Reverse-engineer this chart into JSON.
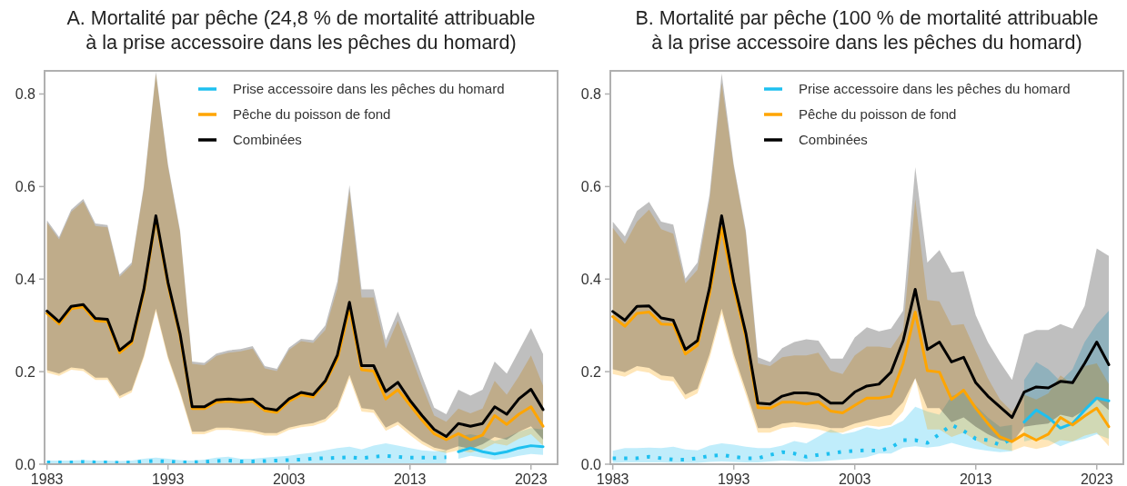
{
  "chart_data": [
    {
      "type": "line",
      "title": "A. Mortalité par pêche (24,8 % de mortalité attribuable\nà la prise accessoire dans les pêches du homard)",
      "xlim": [
        1982.8,
        2025.2
      ],
      "ylim": [
        0,
        0.85
      ],
      "xticks": [
        1983,
        1993,
        2003,
        2013,
        2023
      ],
      "yticks": [
        {
          "value": 0,
          "label": "0.0"
        },
        0.2,
        0.4,
        0.6,
        0.8
      ],
      "grid": false,
      "legend": "top right",
      "x": [
        1983,
        1984,
        1985,
        1986,
        1987,
        1988,
        1989,
        1990,
        1991,
        1992,
        1993,
        1994,
        1995,
        1996,
        1997,
        1998,
        1999,
        2000,
        2001,
        2002,
        2003,
        2004,
        2005,
        2006,
        2007,
        2008,
        2009,
        2010,
        2011,
        2012,
        2013,
        2014,
        2015,
        2016,
        2017,
        2018,
        2019,
        2020,
        2021,
        2022,
        2023,
        2024
      ],
      "series": [
        {
          "color": "#1ec0f0",
          "line_style": "dotted",
          "x": [
            1983,
            1984,
            1985,
            1986,
            1987,
            1988,
            1989,
            1990,
            1991,
            1992,
            1993,
            1994,
            1995,
            1996,
            1997,
            1998,
            1999,
            2000,
            2001,
            2002,
            2003,
            2004,
            2005,
            2006,
            2007,
            2008,
            2009,
            2010,
            2011,
            2012,
            2013,
            2014,
            2015,
            2016
          ],
          "values": [
            0.004,
            0.004,
            0.004,
            0.005,
            0.004,
            0.004,
            0.003,
            0.004,
            0.006,
            0.007,
            0.006,
            0.004,
            0.004,
            0.005,
            0.007,
            0.008,
            0.006,
            0.006,
            0.007,
            0.008,
            0.009,
            0.01,
            0.012,
            0.013,
            0.014,
            0.015,
            0.013,
            0.016,
            0.018,
            0.016,
            0.014,
            0.014,
            0.014,
            0.015
          ],
          "upper": [
            0.008,
            0.008,
            0.008,
            0.009,
            0.008,
            0.008,
            0.007,
            0.008,
            0.012,
            0.014,
            0.012,
            0.009,
            0.008,
            0.01,
            0.014,
            0.016,
            0.012,
            0.012,
            0.014,
            0.016,
            0.018,
            0.022,
            0.025,
            0.03,
            0.035,
            0.038,
            0.032,
            0.04,
            0.045,
            0.04,
            0.035,
            0.03,
            0.028,
            0.03
          ],
          "lower": [
            0.001,
            0.001,
            0.001,
            0.001,
            0.001,
            0.001,
            0.001,
            0.001,
            0.001,
            0.001,
            0.001,
            0.001,
            0.001,
            0.001,
            0.001,
            0.001,
            0.001,
            0.001,
            0.001,
            0.001,
            0.001,
            0.001,
            0.001,
            0.001,
            0.001,
            0.001,
            0.001,
            0.001,
            0.001,
            0.001,
            0.001,
            0.001,
            0.001,
            0.001
          ]
        },
        {
          "name": "Prise accessoire dans les pêches du homard",
          "color": "#1ec0f0",
          "line_style": "solid",
          "x": [
            2017,
            2018,
            2019,
            2020,
            2021,
            2022,
            2023,
            2024
          ],
          "values": [
            0.027,
            0.035,
            0.027,
            0.022,
            0.027,
            0.035,
            0.04,
            0.038
          ],
          "upper": [
            0.06,
            0.065,
            0.06,
            0.05,
            0.058,
            0.07,
            0.078,
            0.075
          ],
          "lower": [
            0.012,
            0.018,
            0.014,
            0.01,
            0.013,
            0.018,
            0.022,
            0.02
          ]
        },
        {
          "name": "Pêche du poisson de fond",
          "color": "#ffa500",
          "line_style": "solid",
          "values": [
            0.326,
            0.303,
            0.336,
            0.34,
            0.31,
            0.308,
            0.241,
            0.262,
            0.372,
            0.532,
            0.388,
            0.277,
            0.12,
            0.12,
            0.134,
            0.136,
            0.134,
            0.136,
            0.116,
            0.112,
            0.136,
            0.15,
            0.145,
            0.177,
            0.227,
            0.337,
            0.204,
            0.201,
            0.141,
            0.161,
            0.128,
            0.095,
            0.066,
            0.053,
            0.066,
            0.053,
            0.063,
            0.105,
            0.086,
            0.108,
            0.124,
            0.082
          ],
          "upper": [
            0.522,
            0.486,
            0.545,
            0.568,
            0.515,
            0.512,
            0.405,
            0.431,
            0.595,
            0.843,
            0.643,
            0.5,
            0.217,
            0.214,
            0.234,
            0.241,
            0.244,
            0.25,
            0.207,
            0.201,
            0.247,
            0.266,
            0.262,
            0.29,
            0.38,
            0.59,
            0.36,
            0.36,
            0.25,
            0.31,
            0.24,
            0.17,
            0.105,
            0.092,
            0.12,
            0.11,
            0.12,
            0.18,
            0.15,
            0.19,
            0.235,
            0.17
          ],
          "lower": [
            0.198,
            0.191,
            0.204,
            0.201,
            0.182,
            0.182,
            0.142,
            0.155,
            0.229,
            0.331,
            0.227,
            0.152,
            0.065,
            0.065,
            0.074,
            0.074,
            0.071,
            0.068,
            0.062,
            0.062,
            0.074,
            0.08,
            0.083,
            0.092,
            0.117,
            0.186,
            0.114,
            0.111,
            0.072,
            0.085,
            0.063,
            0.043,
            0.03,
            0.024,
            0.03,
            0.025,
            0.032,
            0.045,
            0.04,
            0.055,
            0.065,
            0.04
          ]
        },
        {
          "name": "Combinées",
          "color": "#000000",
          "line_style": "solid",
          "values": [
            0.331,
            0.308,
            0.341,
            0.345,
            0.315,
            0.313,
            0.246,
            0.267,
            0.377,
            0.537,
            0.393,
            0.282,
            0.124,
            0.124,
            0.139,
            0.141,
            0.139,
            0.141,
            0.121,
            0.117,
            0.141,
            0.155,
            0.15,
            0.18,
            0.236,
            0.35,
            0.213,
            0.213,
            0.157,
            0.177,
            0.138,
            0.105,
            0.075,
            0.06,
            0.088,
            0.082,
            0.088,
            0.124,
            0.108,
            0.141,
            0.162,
            0.118
          ],
          "upper": [
            0.527,
            0.491,
            0.55,
            0.573,
            0.52,
            0.517,
            0.41,
            0.436,
            0.6,
            0.848,
            0.648,
            0.505,
            0.222,
            0.219,
            0.239,
            0.246,
            0.249,
            0.255,
            0.212,
            0.206,
            0.252,
            0.271,
            0.268,
            0.3,
            0.395,
            0.603,
            0.378,
            0.378,
            0.268,
            0.33,
            0.262,
            0.19,
            0.122,
            0.108,
            0.161,
            0.148,
            0.161,
            0.222,
            0.196,
            0.245,
            0.294,
            0.238
          ],
          "lower": [
            0.203,
            0.196,
            0.209,
            0.206,
            0.187,
            0.187,
            0.147,
            0.16,
            0.234,
            0.336,
            0.232,
            0.157,
            0.07,
            0.07,
            0.079,
            0.079,
            0.076,
            0.073,
            0.067,
            0.067,
            0.079,
            0.085,
            0.089,
            0.098,
            0.124,
            0.193,
            0.121,
            0.118,
            0.079,
            0.092,
            0.07,
            0.05,
            0.036,
            0.03,
            0.039,
            0.033,
            0.043,
            0.059,
            0.053,
            0.07,
            0.082,
            0.053
          ]
        }
      ]
    },
    {
      "type": "line",
      "title": "B. Mortalité par pêche (100 % de mortalité attribuable\nà la prise accessoire dans les pêches du homard)",
      "xlim": [
        1982.8,
        2025.2
      ],
      "ylim": [
        0,
        0.85
      ],
      "xticks": [
        1983,
        1993,
        2003,
        2013,
        2023
      ],
      "yticks": [
        {
          "value": 0,
          "label": "0.0"
        },
        0.2,
        0.4,
        0.6,
        0.8
      ],
      "grid": false,
      "legend": "top right",
      "x": [
        1983,
        1984,
        1985,
        1986,
        1987,
        1988,
        1989,
        1990,
        1991,
        1992,
        1993,
        1994,
        1995,
        1996,
        1997,
        1998,
        1999,
        2000,
        2001,
        2002,
        2003,
        2004,
        2005,
        2006,
        2007,
        2008,
        2009,
        2010,
        2011,
        2012,
        2013,
        2014,
        2015,
        2016,
        2017,
        2018,
        2019,
        2020,
        2021,
        2022,
        2023,
        2024
      ],
      "series": [
        {
          "color": "#1ec0f0",
          "line_style": "dotted",
          "x": [
            1983,
            1984,
            1985,
            1986,
            1987,
            1988,
            1989,
            1990,
            1991,
            1992,
            1993,
            1994,
            1995,
            1996,
            1997,
            1998,
            1999,
            2000,
            2001,
            2002,
            2003,
            2004,
            2005,
            2006,
            2007,
            2008,
            2009,
            2010,
            2011,
            2012,
            2013,
            2014,
            2015,
            2016
          ],
          "values": [
            0.013,
            0.013,
            0.013,
            0.016,
            0.013,
            0.01,
            0.01,
            0.013,
            0.018,
            0.02,
            0.016,
            0.013,
            0.013,
            0.02,
            0.026,
            0.023,
            0.016,
            0.02,
            0.023,
            0.027,
            0.029,
            0.03,
            0.029,
            0.036,
            0.052,
            0.052,
            0.046,
            0.065,
            0.085,
            0.072,
            0.055,
            0.052,
            0.042,
            0.055
          ],
          "upper": [
            0.029,
            0.035,
            0.035,
            0.036,
            0.035,
            0.038,
            0.032,
            0.03,
            0.04,
            0.045,
            0.042,
            0.038,
            0.035,
            0.035,
            0.04,
            0.05,
            0.045,
            0.06,
            0.075,
            0.065,
            0.07,
            0.08,
            0.075,
            0.081,
            0.094,
            0.124,
            0.114,
            0.107,
            0.147,
            0.156,
            0.127,
            0.101,
            0.081,
            0.085
          ],
          "lower": [
            0.003,
            0.004,
            0.004,
            0.004,
            0.004,
            0.003,
            0.003,
            0.003,
            0.005,
            0.006,
            0.005,
            0.004,
            0.004,
            0.006,
            0.008,
            0.007,
            0.005,
            0.006,
            0.008,
            0.01,
            0.012,
            0.015,
            0.023,
            0.023,
            0.036,
            0.039,
            0.036,
            0.039,
            0.046,
            0.039,
            0.033,
            0.029,
            0.026,
            0.028
          ]
        },
        {
          "name": "Prise accessoire dans les pêches du homard",
          "color": "#1ec0f0",
          "line_style": "solid",
          "x": [
            2017,
            2018,
            2019,
            2020,
            2021,
            2022,
            2023,
            2024
          ],
          "values": [
            0.091,
            0.117,
            0.101,
            0.078,
            0.088,
            0.117,
            0.143,
            0.137
          ],
          "upper": [
            0.182,
            0.221,
            0.205,
            0.179,
            0.205,
            0.264,
            0.303,
            0.332
          ],
          "lower": [
            0.049,
            0.055,
            0.052,
            0.039,
            0.049,
            0.055,
            0.065,
            0.055
          ]
        },
        {
          "name": "Pêche du poisson de fond",
          "color": "#ffa500",
          "line_style": "solid",
          "values": [
            0.319,
            0.298,
            0.326,
            0.329,
            0.303,
            0.302,
            0.238,
            0.257,
            0.368,
            0.511,
            0.381,
            0.274,
            0.122,
            0.121,
            0.134,
            0.134,
            0.13,
            0.135,
            0.115,
            0.111,
            0.127,
            0.143,
            0.143,
            0.147,
            0.218,
            0.329,
            0.202,
            0.199,
            0.14,
            0.16,
            0.121,
            0.088,
            0.059,
            0.049,
            0.065,
            0.052,
            0.065,
            0.101,
            0.085,
            0.104,
            0.121,
            0.081
          ],
          "upper": [
            0.511,
            0.476,
            0.524,
            0.55,
            0.508,
            0.498,
            0.391,
            0.42,
            0.57,
            0.824,
            0.642,
            0.498,
            0.218,
            0.212,
            0.231,
            0.235,
            0.235,
            0.241,
            0.202,
            0.195,
            0.235,
            0.254,
            0.254,
            0.251,
            0.29,
            0.573,
            0.355,
            0.352,
            0.3,
            0.303,
            0.244,
            0.186,
            0.14,
            0.114,
            0.15,
            0.14,
            0.153,
            0.192,
            0.173,
            0.212,
            0.218,
            0.173
          ],
          "lower": [
            0.195,
            0.189,
            0.202,
            0.198,
            0.182,
            0.179,
            0.14,
            0.153,
            0.228,
            0.326,
            0.228,
            0.15,
            0.068,
            0.068,
            0.078,
            0.081,
            0.078,
            0.075,
            0.068,
            0.068,
            0.078,
            0.084,
            0.081,
            0.085,
            0.114,
            0.186,
            0.075,
            0.075,
            0.059,
            0.068,
            0.052,
            0.039,
            0.033,
            0.029,
            0.039,
            0.033,
            0.039,
            0.052,
            0.049,
            0.062,
            0.068,
            0.039
          ]
        },
        {
          "name": "Combinées",
          "color": "#000000",
          "line_style": "solid",
          "values": [
            0.33,
            0.311,
            0.341,
            0.342,
            0.316,
            0.311,
            0.248,
            0.267,
            0.381,
            0.537,
            0.394,
            0.283,
            0.132,
            0.13,
            0.147,
            0.154,
            0.154,
            0.15,
            0.132,
            0.132,
            0.156,
            0.169,
            0.173,
            0.199,
            0.267,
            0.378,
            0.248,
            0.264,
            0.221,
            0.231,
            0.176,
            0.147,
            0.124,
            0.101,
            0.156,
            0.167,
            0.165,
            0.179,
            0.176,
            0.218,
            0.264,
            0.215
          ],
          "upper": [
            0.524,
            0.492,
            0.547,
            0.567,
            0.524,
            0.518,
            0.401,
            0.436,
            0.583,
            0.844,
            0.648,
            0.505,
            0.231,
            0.221,
            0.251,
            0.264,
            0.27,
            0.267,
            0.228,
            0.228,
            0.274,
            0.296,
            0.287,
            0.293,
            0.332,
            0.642,
            0.436,
            0.463,
            0.414,
            0.417,
            0.322,
            0.264,
            0.221,
            0.182,
            0.28,
            0.29,
            0.29,
            0.303,
            0.293,
            0.342,
            0.466,
            0.45
          ],
          "lower": [
            0.205,
            0.199,
            0.212,
            0.208,
            0.192,
            0.189,
            0.15,
            0.163,
            0.238,
            0.336,
            0.238,
            0.16,
            0.078,
            0.078,
            0.088,
            0.091,
            0.088,
            0.085,
            0.078,
            0.078,
            0.088,
            0.094,
            0.101,
            0.107,
            0.134,
            0.186,
            0.121,
            0.121,
            0.091,
            0.101,
            0.081,
            0.065,
            0.052,
            0.046,
            0.081,
            0.085,
            0.088,
            0.107,
            0.101,
            0.117,
            0.14,
            0.117
          ]
        }
      ]
    }
  ]
}
